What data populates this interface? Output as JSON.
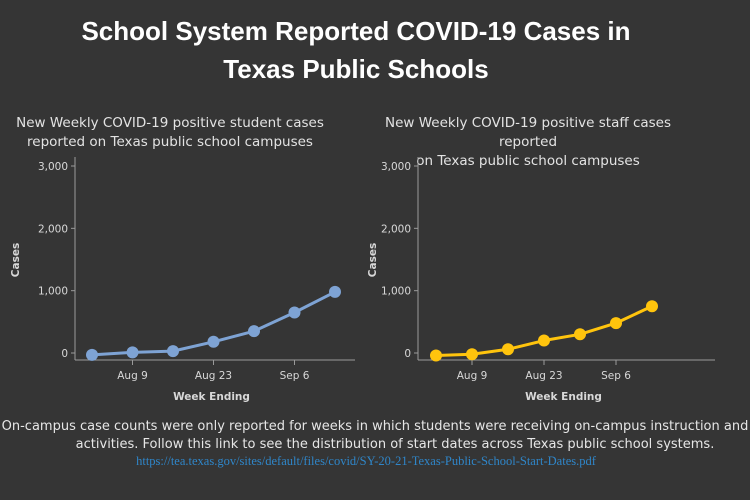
{
  "page": {
    "title_line1": "School System Reported COVID-19 Cases in",
    "title_line2": "Texas Public Schools",
    "footnote_line1": "On-campus case counts were only reported for weeks in which students were receiving on-campus instruction and",
    "footnote_line2": "activities. Follow this link to see the distribution of start dates across Texas public school systems.",
    "link_text": "https://tea.texas.gov/sites/default/files/covid/SY-20-21-Texas-Public-School-Start-Dates.pdf"
  },
  "chart_data": [
    {
      "type": "line",
      "title_line1": "New Weekly COVID-19 positive student cases",
      "title_line2": "reported on Texas public school campuses",
      "xlabel": "Week Ending",
      "ylabel": "Cases",
      "x_ticks": [
        "Aug 9",
        "Aug 23",
        "Sep 6"
      ],
      "y_ticks": [
        0,
        1000,
        2000,
        3000
      ],
      "y_tick_labels": [
        "0",
        "1,000",
        "2,000",
        "3,000"
      ],
      "ylim": [
        0,
        3000
      ],
      "weeks": [
        0,
        1,
        2,
        3,
        4,
        5,
        6
      ],
      "values": [
        -30,
        10,
        30,
        180,
        350,
        650,
        980
      ],
      "color": "#7ea3d4"
    },
    {
      "type": "line",
      "title_line1": "New Weekly COVID-19 positive staff cases reported",
      "title_line2": "on Texas public school campuses",
      "xlabel": "Week Ending",
      "ylabel": "Cases",
      "x_ticks": [
        "Aug 9",
        "Aug 23",
        "Sep 6"
      ],
      "y_ticks": [
        0,
        1000,
        2000,
        3000
      ],
      "y_tick_labels": [
        "0",
        "1,000",
        "2,000",
        "3,000"
      ],
      "ylim": [
        0,
        3000
      ],
      "weeks": [
        0,
        1,
        2,
        3,
        4,
        5,
        6
      ],
      "values": [
        -40,
        -20,
        60,
        200,
        300,
        480,
        750
      ],
      "color": "#ffc40d"
    }
  ]
}
